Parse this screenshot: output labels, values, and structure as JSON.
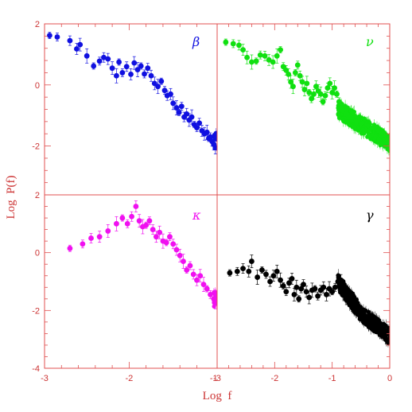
{
  "chart_data": {
    "type": "scatter",
    "xlabel": "Log  f",
    "ylabel": "Log  P(f)",
    "grid": false,
    "error_bars": true,
    "x_ticks_left": [
      "-3",
      "-2",
      "-1"
    ],
    "x_ticks_right": [
      "-3",
      "-2",
      "-1",
      "0"
    ],
    "y_ticks_top": [
      "2",
      "0",
      "-2"
    ],
    "y_ticks_bottom": [
      "2",
      "0",
      "-2",
      "-4"
    ],
    "panels": [
      {
        "name": "β",
        "color": "#1010e0",
        "xlim": [
          -3.0,
          -0.96
        ],
        "ylim": [
          -3.6,
          2.0
        ],
        "points": [
          [
            -2.94,
            1.62
          ],
          [
            -2.85,
            1.57
          ],
          [
            -2.7,
            1.45
          ],
          [
            -2.62,
            1.18
          ],
          [
            -2.58,
            1.32
          ],
          [
            -2.5,
            0.95
          ],
          [
            -2.42,
            0.62
          ],
          [
            -2.35,
            0.78
          ],
          [
            -2.3,
            0.9
          ],
          [
            -2.25,
            0.85
          ],
          [
            -2.2,
            0.55
          ],
          [
            -2.15,
            0.3
          ],
          [
            -2.12,
            0.75
          ],
          [
            -2.08,
            0.4
          ],
          [
            -2.03,
            0.6
          ],
          [
            -1.98,
            0.35
          ],
          [
            -1.94,
            0.72
          ],
          [
            -1.9,
            0.5
          ],
          [
            -1.86,
            0.62
          ],
          [
            -1.82,
            0.36
          ],
          [
            -1.78,
            0.55
          ],
          [
            -1.74,
            0.3
          ],
          [
            -1.7,
            0.05
          ],
          [
            -1.66,
            -0.05
          ],
          [
            -1.62,
            0.12
          ],
          [
            -1.58,
            -0.18
          ],
          [
            -1.55,
            -0.35
          ],
          [
            -1.51,
            -0.3
          ],
          [
            -1.48,
            -0.6
          ],
          [
            -1.44,
            -0.75
          ],
          [
            -1.41,
            -0.9
          ],
          [
            -1.38,
            -0.7
          ],
          [
            -1.35,
            -1.05
          ],
          [
            -1.32,
            -0.95
          ],
          [
            -1.29,
            -1.15
          ],
          [
            -1.26,
            -1.05
          ],
          [
            -1.23,
            -1.3
          ],
          [
            -1.2,
            -1.4
          ],
          [
            -1.17,
            -1.25
          ],
          [
            -1.14,
            -1.5
          ],
          [
            -1.11,
            -1.6
          ],
          [
            -1.08,
            -1.55
          ],
          [
            -1.06,
            -1.75
          ],
          [
            -1.04,
            -1.7
          ],
          [
            -1.02,
            -1.85
          ],
          [
            -1.0,
            -1.95
          ],
          [
            -0.98,
            -2.05
          ]
        ],
        "trend": [
          [
            -1.0,
            -1.8
          ],
          [
            -0.4,
            -2.0
          ],
          [
            0.0,
            -2.4
          ]
        ]
      },
      {
        "name": "ν",
        "color": "#10e010",
        "xlim": [
          -3.0,
          0.0
        ],
        "ylim": [
          -3.6,
          2.0
        ],
        "points": [
          [
            -2.85,
            1.4
          ],
          [
            -2.72,
            1.35
          ],
          [
            -2.62,
            1.3
          ],
          [
            -2.55,
            1.15
          ],
          [
            -2.48,
            0.9
          ],
          [
            -2.4,
            0.75
          ],
          [
            -2.32,
            0.78
          ],
          [
            -2.25,
            0.98
          ],
          [
            -2.17,
            0.95
          ],
          [
            -2.1,
            0.82
          ],
          [
            -2.03,
            0.75
          ],
          [
            -1.96,
            0.95
          ],
          [
            -1.9,
            1.15
          ],
          [
            -1.85,
            0.6
          ],
          [
            -1.8,
            0.48
          ],
          [
            -1.76,
            0.35
          ],
          [
            -1.72,
            0.1
          ],
          [
            -1.68,
            -0.05
          ],
          [
            -1.64,
            0.4
          ],
          [
            -1.6,
            0.65
          ],
          [
            -1.56,
            0.3
          ],
          [
            -1.52,
            0.1
          ],
          [
            -1.48,
            -0.15
          ],
          [
            -1.44,
            0.05
          ],
          [
            -1.4,
            -0.25
          ],
          [
            -1.36,
            -0.45
          ],
          [
            -1.32,
            -0.3
          ],
          [
            -1.28,
            -0.05
          ],
          [
            -1.24,
            -0.2
          ],
          [
            -1.2,
            -0.3
          ],
          [
            -1.16,
            -0.55
          ],
          [
            -1.12,
            -0.35
          ],
          [
            -1.08,
            -0.1
          ],
          [
            -1.04,
            0.05
          ],
          [
            -1.0,
            -0.25
          ],
          [
            -0.96,
            -0.1
          ],
          [
            -0.92,
            -0.3
          ],
          [
            -0.88,
            -0.55
          ],
          [
            -0.84,
            -0.75
          ],
          [
            -0.8,
            -0.85
          ],
          [
            -0.76,
            -0.95
          ],
          [
            -0.72,
            -1.0
          ],
          [
            -0.68,
            -1.05
          ]
        ],
        "trend": [
          [
            -0.9,
            -0.8
          ],
          [
            -0.5,
            -1.3
          ],
          [
            0.0,
            -1.9
          ]
        ]
      },
      {
        "name": "κ",
        "color": "#f010f0",
        "xlim": [
          -3.0,
          -0.96
        ],
        "ylim": [
          -4.0,
          2.0
        ],
        "points": [
          [
            -2.7,
            0.15
          ],
          [
            -2.55,
            0.3
          ],
          [
            -2.45,
            0.5
          ],
          [
            -2.35,
            0.55
          ],
          [
            -2.25,
            0.75
          ],
          [
            -2.15,
            1.0
          ],
          [
            -2.08,
            1.2
          ],
          [
            -2.02,
            1.0
          ],
          [
            -1.97,
            1.25
          ],
          [
            -1.92,
            1.6
          ],
          [
            -1.88,
            1.1
          ],
          [
            -1.84,
            0.9
          ],
          [
            -1.8,
            0.95
          ],
          [
            -1.76,
            1.1
          ],
          [
            -1.72,
            0.8
          ],
          [
            -1.68,
            0.55
          ],
          [
            -1.64,
            0.7
          ],
          [
            -1.6,
            0.4
          ],
          [
            -1.56,
            0.35
          ],
          [
            -1.52,
            0.55
          ],
          [
            -1.48,
            0.3
          ],
          [
            -1.44,
            0.1
          ],
          [
            -1.4,
            -0.1
          ],
          [
            -1.36,
            -0.3
          ],
          [
            -1.32,
            -0.6
          ],
          [
            -1.28,
            -0.45
          ],
          [
            -1.24,
            -0.75
          ],
          [
            -1.2,
            -0.95
          ],
          [
            -1.16,
            -0.8
          ],
          [
            -1.12,
            -1.1
          ],
          [
            -1.08,
            -1.25
          ],
          [
            -1.04,
            -1.45
          ],
          [
            -1.0,
            -1.6
          ],
          [
            -0.98,
            -1.75
          ]
        ],
        "trend": [
          [
            -1.0,
            -1.6
          ],
          [
            -0.5,
            -2.1
          ],
          [
            0.0,
            -2.55
          ]
        ]
      },
      {
        "name": "γ",
        "color": "#000000",
        "xlim": [
          -3.0,
          0.0
        ],
        "ylim": [
          -4.0,
          2.0
        ],
        "points": [
          [
            -2.78,
            -0.7
          ],
          [
            -2.65,
            -0.65
          ],
          [
            -2.55,
            -0.55
          ],
          [
            -2.45,
            -0.65
          ],
          [
            -2.4,
            -0.3
          ],
          [
            -2.3,
            -0.85
          ],
          [
            -2.22,
            -0.6
          ],
          [
            -2.15,
            -0.75
          ],
          [
            -2.08,
            -1.0
          ],
          [
            -2.02,
            -0.8
          ],
          [
            -1.96,
            -0.65
          ],
          [
            -1.9,
            -0.95
          ],
          [
            -1.85,
            -1.15
          ],
          [
            -1.8,
            -1.35
          ],
          [
            -1.75,
            -1.05
          ],
          [
            -1.7,
            -0.9
          ],
          [
            -1.66,
            -1.45
          ],
          [
            -1.62,
            -1.2
          ],
          [
            -1.58,
            -1.6
          ],
          [
            -1.54,
            -1.25
          ],
          [
            -1.5,
            -1.1
          ],
          [
            -1.45,
            -1.35
          ],
          [
            -1.4,
            -1.55
          ],
          [
            -1.35,
            -1.3
          ],
          [
            -1.3,
            -1.25
          ],
          [
            -1.25,
            -1.5
          ],
          [
            -1.2,
            -1.3
          ],
          [
            -1.15,
            -1.2
          ],
          [
            -1.1,
            -1.45
          ],
          [
            -1.05,
            -1.25
          ],
          [
            -1.0,
            -1.35
          ],
          [
            -0.95,
            -1.2
          ],
          [
            -0.9,
            -1.0
          ],
          [
            -0.85,
            -0.95
          ],
          [
            -0.8,
            -1.3
          ],
          [
            -0.75,
            -1.55
          ],
          [
            -0.7,
            -1.75
          ],
          [
            -0.65,
            -1.9
          ]
        ],
        "trend": [
          [
            -0.9,
            -1.0
          ],
          [
            -0.5,
            -2.1
          ],
          [
            0.0,
            -2.9
          ]
        ]
      }
    ]
  }
}
